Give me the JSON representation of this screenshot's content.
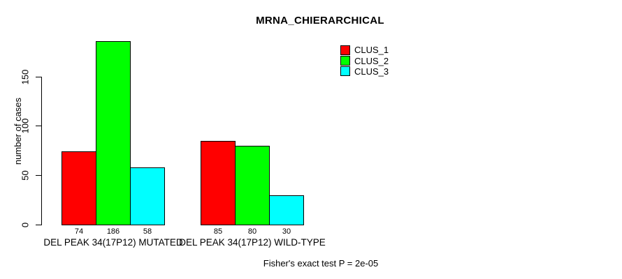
{
  "caption": "Fisher's exact test P = 2e-05",
  "chart_data": {
    "type": "bar",
    "title": "MRNA_CHIERARCHICAL",
    "xlabel": "",
    "ylabel": "number of cases",
    "ylim": [
      0,
      150
    ],
    "yticks": [
      0,
      50,
      100,
      150
    ],
    "grid": false,
    "legend_position": "top-right",
    "bar_value_labels_shown": true,
    "categories": [
      "DEL PEAK 34(17P12) MUTATED",
      "DEL PEAK 34(17P12) WILD-TYPE"
    ],
    "series": [
      {
        "name": "CLUS_1",
        "color": "#ff0000",
        "values": [
          74,
          85
        ]
      },
      {
        "name": "CLUS_2",
        "color": "#00ff00",
        "values": [
          186,
          80
        ]
      },
      {
        "name": "CLUS_3",
        "color": "#00ffff",
        "values": [
          58,
          30
        ]
      }
    ]
  }
}
